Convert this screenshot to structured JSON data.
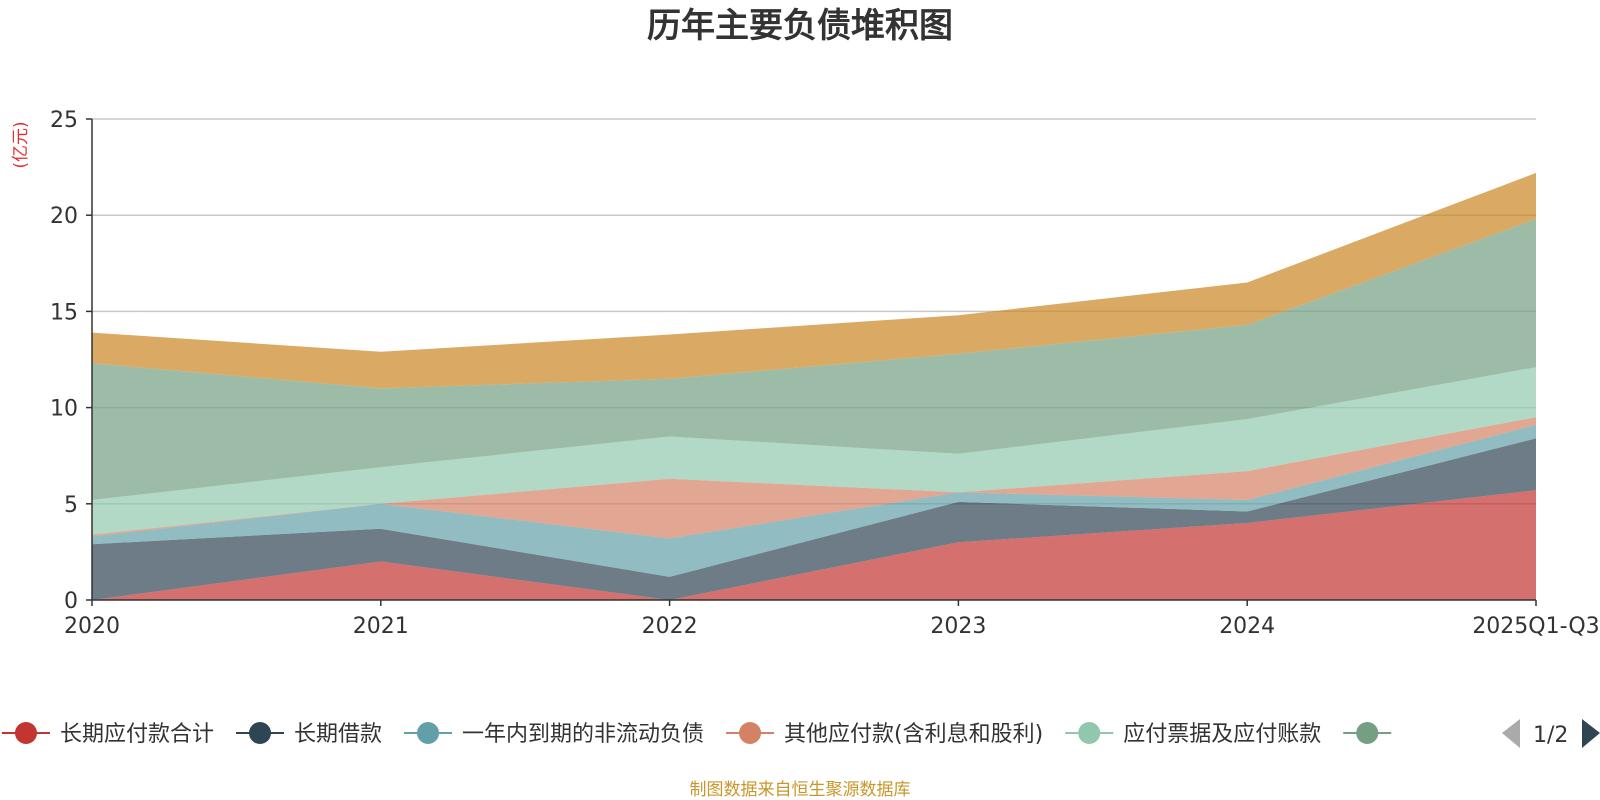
{
  "chart_data": {
    "type": "area",
    "stacked": true,
    "title": "历年主要负债堆积图",
    "ylabel": "(亿元)",
    "ylim": [
      0,
      25
    ],
    "yticks": [
      0,
      5,
      10,
      15,
      20,
      25
    ],
    "grid": true,
    "categories": [
      "2020",
      "2021",
      "2022",
      "2023",
      "2024",
      "2025Q1-Q3"
    ],
    "series": [
      {
        "name": "长期应付款合计",
        "color": "#c23531",
        "values": [
          0.0,
          2.0,
          0.0,
          3.0,
          4.0,
          5.7
        ]
      },
      {
        "name": "长期借款",
        "color": "#2f4554",
        "values": [
          2.9,
          1.7,
          1.2,
          2.1,
          0.6,
          2.7
        ]
      },
      {
        "name": "一年内到期的非流动负债",
        "color": "#61a0a8",
        "values": [
          0.4,
          1.3,
          2.0,
          0.5,
          0.6,
          0.7
        ]
      },
      {
        "name": "其他应付款(含利息和股利)",
        "color": "#d48265",
        "values": [
          0.1,
          0.0,
          3.1,
          0.0,
          1.5,
          0.4
        ]
      },
      {
        "name": "应付票据及应付账款",
        "color": "#91c7ae",
        "values": [
          1.8,
          1.9,
          2.2,
          2.0,
          2.7,
          2.6
        ]
      },
      {
        "name": "",
        "color": "#749f83",
        "values": [
          7.1,
          4.1,
          3.0,
          5.2,
          4.9,
          7.7
        ]
      },
      {
        "name": "",
        "color": "#ca8622",
        "values": [
          1.6,
          1.9,
          2.3,
          2.0,
          2.2,
          2.4
        ]
      }
    ],
    "legend": {
      "placement": "bottom",
      "page": "1/2",
      "visible_items": [
        {
          "name": "长期应付款合计",
          "color": "#c23531"
        },
        {
          "name": "长期借款",
          "color": "#2f4554"
        },
        {
          "name": "一年内到期的非流动负债",
          "color": "#61a0a8"
        },
        {
          "name": "其他应付款(含利息和股利)",
          "color": "#d48265"
        },
        {
          "name": "应付票据及应付账款",
          "color": "#91c7ae"
        },
        {
          "name": "",
          "color": "#749f83"
        }
      ]
    },
    "source_note": "制图数据来自恒生聚源数据库"
  }
}
